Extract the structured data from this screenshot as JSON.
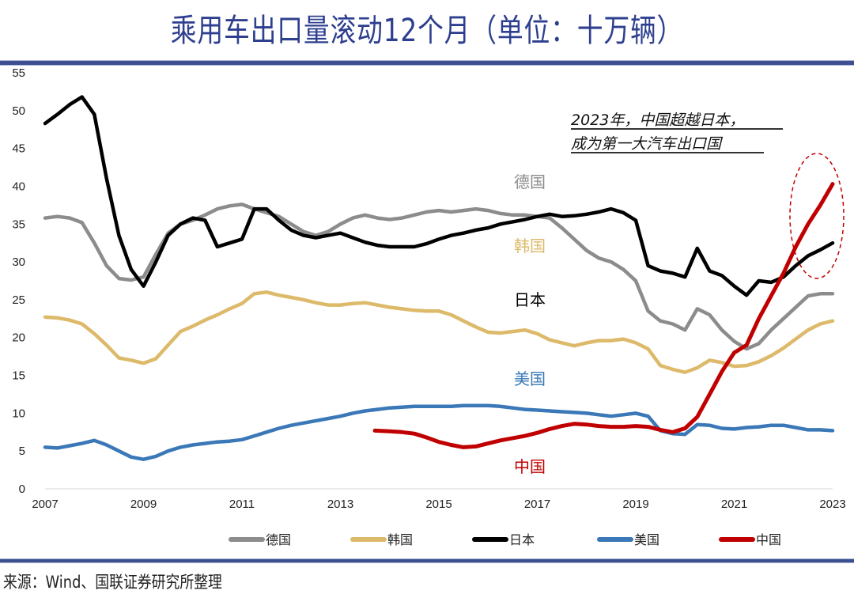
{
  "header": {
    "title": "乘用车出口量滚动12个月（单位：十万辆）"
  },
  "footer": {
    "source": "来源：Wind、国联证券研究所整理"
  },
  "chart_data": {
    "type": "line",
    "title": "乘用车出口量滚动12个月（单位：十万辆）",
    "xlabel": "",
    "ylabel": "",
    "xlim": [
      2007,
      2023
    ],
    "ylim": [
      0,
      55
    ],
    "yticks": [
      0,
      5,
      10,
      15,
      20,
      25,
      30,
      35,
      40,
      45,
      50,
      55
    ],
    "xticks": [
      2007,
      2009,
      2011,
      2013,
      2015,
      2017,
      2019,
      2021,
      2023
    ],
    "grid": false,
    "legend_position": "bottom",
    "annotation": {
      "line1": "2023年，中国超越日本，",
      "line2": "成为第一大汽车出口国",
      "highlight": "dashed ellipse around China & Japan 2022-2023"
    },
    "series": [
      {
        "name": "德国",
        "color": "#8c8c8c",
        "inline_label": "德国",
        "x": [
          2007.0,
          2007.25,
          2007.5,
          2007.75,
          2008.0,
          2008.25,
          2008.5,
          2008.75,
          2009.0,
          2009.25,
          2009.5,
          2009.75,
          2010.0,
          2010.25,
          2010.5,
          2010.75,
          2011.0,
          2011.25,
          2011.5,
          2011.75,
          2012.0,
          2012.25,
          2012.5,
          2012.75,
          2013.0,
          2013.25,
          2013.5,
          2013.75,
          2014.0,
          2014.25,
          2014.5,
          2014.75,
          2015.0,
          2015.25,
          2015.5,
          2015.75,
          2016.0,
          2016.25,
          2016.5,
          2016.75,
          2017.0,
          2017.25,
          2017.5,
          2017.75,
          2018.0,
          2018.25,
          2018.5,
          2018.75,
          2019.0,
          2019.25,
          2019.5,
          2019.75,
          2020.0,
          2020.25,
          2020.5,
          2020.75,
          2021.0,
          2021.25,
          2021.5,
          2021.75,
          2022.0,
          2022.25,
          2022.5,
          2022.75,
          2023.0
        ],
        "values": [
          35.8,
          36.0,
          35.8,
          35.2,
          32.5,
          29.5,
          27.8,
          27.6,
          28.0,
          31.0,
          33.8,
          35.0,
          35.5,
          36.2,
          37.0,
          37.4,
          37.6,
          37.0,
          36.5,
          36.0,
          35.0,
          34.0,
          33.5,
          34.0,
          35.0,
          35.8,
          36.2,
          35.8,
          35.6,
          35.8,
          36.2,
          36.6,
          36.8,
          36.6,
          36.8,
          37.0,
          36.8,
          36.4,
          36.2,
          36.2,
          36.0,
          35.8,
          34.5,
          33.0,
          31.5,
          30.5,
          30.0,
          29.0,
          27.5,
          23.5,
          22.2,
          21.8,
          21.0,
          23.8,
          23.0,
          21.0,
          19.5,
          18.5,
          19.2,
          21.0,
          22.5,
          24.0,
          25.5,
          25.8,
          25.8
        ]
      },
      {
        "name": "韩国",
        "color": "#ddb96a",
        "inline_label": "韩国",
        "x": [
          2007.0,
          2007.25,
          2007.5,
          2007.75,
          2008.0,
          2008.25,
          2008.5,
          2008.75,
          2009.0,
          2009.25,
          2009.5,
          2009.75,
          2010.0,
          2010.25,
          2010.5,
          2010.75,
          2011.0,
          2011.25,
          2011.5,
          2011.75,
          2012.0,
          2012.25,
          2012.5,
          2012.75,
          2013.0,
          2013.25,
          2013.5,
          2013.75,
          2014.0,
          2014.25,
          2014.5,
          2014.75,
          2015.0,
          2015.25,
          2015.5,
          2015.75,
          2016.0,
          2016.25,
          2016.5,
          2016.75,
          2017.0,
          2017.25,
          2017.5,
          2017.75,
          2018.0,
          2018.25,
          2018.5,
          2018.75,
          2019.0,
          2019.25,
          2019.5,
          2019.75,
          2020.0,
          2020.25,
          2020.5,
          2020.75,
          2021.0,
          2021.25,
          2021.5,
          2021.75,
          2022.0,
          2022.25,
          2022.5,
          2022.75,
          2023.0
        ],
        "values": [
          22.7,
          22.6,
          22.3,
          21.8,
          20.5,
          19.0,
          17.3,
          17.0,
          16.6,
          17.2,
          19.0,
          20.8,
          21.5,
          22.3,
          23.0,
          23.8,
          24.5,
          25.8,
          26.0,
          25.6,
          25.3,
          25.0,
          24.6,
          24.3,
          24.3,
          24.5,
          24.6,
          24.3,
          24.0,
          23.8,
          23.6,
          23.5,
          23.5,
          23.0,
          22.2,
          21.4,
          20.7,
          20.6,
          20.8,
          21.0,
          20.5,
          19.7,
          19.3,
          18.9,
          19.3,
          19.6,
          19.6,
          19.8,
          19.3,
          18.5,
          16.3,
          15.8,
          15.4,
          16.0,
          17.0,
          16.7,
          16.2,
          16.3,
          16.8,
          17.6,
          18.6,
          19.8,
          21.0,
          21.8,
          22.2
        ]
      },
      {
        "name": "日本",
        "color": "#000000",
        "inline_label": "日本",
        "x": [
          2007.0,
          2007.25,
          2007.5,
          2007.75,
          2008.0,
          2008.25,
          2008.5,
          2008.75,
          2009.0,
          2009.25,
          2009.5,
          2009.75,
          2010.0,
          2010.25,
          2010.5,
          2010.75,
          2011.0,
          2011.25,
          2011.5,
          2011.75,
          2012.0,
          2012.25,
          2012.5,
          2012.75,
          2013.0,
          2013.25,
          2013.5,
          2013.75,
          2014.0,
          2014.25,
          2014.5,
          2014.75,
          2015.0,
          2015.25,
          2015.5,
          2015.75,
          2016.0,
          2016.25,
          2016.5,
          2016.75,
          2017.0,
          2017.25,
          2017.5,
          2017.75,
          2018.0,
          2018.25,
          2018.5,
          2018.75,
          2019.0,
          2019.25,
          2019.5,
          2019.75,
          2020.0,
          2020.25,
          2020.5,
          2020.75,
          2021.0,
          2021.25,
          2021.5,
          2021.75,
          2022.0,
          2022.25,
          2022.5,
          2022.75,
          2023.0
        ],
        "values": [
          48.3,
          49.5,
          50.8,
          51.8,
          49.5,
          41.0,
          33.5,
          29.0,
          26.8,
          30.0,
          33.5,
          35.0,
          35.8,
          35.5,
          32.0,
          32.5,
          33.0,
          37.0,
          37.0,
          35.5,
          34.2,
          33.5,
          33.2,
          33.5,
          33.8,
          33.2,
          32.6,
          32.2,
          32.0,
          32.0,
          32.0,
          32.4,
          33.0,
          33.5,
          33.8,
          34.2,
          34.5,
          35.0,
          35.3,
          35.6,
          36.0,
          36.3,
          36.0,
          36.1,
          36.3,
          36.6,
          37.0,
          36.5,
          35.5,
          29.5,
          28.8,
          28.5,
          28.0,
          31.8,
          28.8,
          28.2,
          26.8,
          25.6,
          27.5,
          27.3,
          28.0,
          29.5,
          30.8,
          31.6,
          32.5
        ]
      },
      {
        "name": "美国",
        "color": "#3a78b7",
        "inline_label": "美国",
        "x": [
          2007.0,
          2007.25,
          2007.5,
          2007.75,
          2008.0,
          2008.25,
          2008.5,
          2008.75,
          2009.0,
          2009.25,
          2009.5,
          2009.75,
          2010.0,
          2010.25,
          2010.5,
          2010.75,
          2011.0,
          2011.25,
          2011.5,
          2011.75,
          2012.0,
          2012.25,
          2012.5,
          2012.75,
          2013.0,
          2013.25,
          2013.5,
          2013.75,
          2014.0,
          2014.25,
          2014.5,
          2014.75,
          2015.0,
          2015.25,
          2015.5,
          2015.75,
          2016.0,
          2016.25,
          2016.5,
          2016.75,
          2017.0,
          2017.25,
          2017.5,
          2017.75,
          2018.0,
          2018.25,
          2018.5,
          2018.75,
          2019.0,
          2019.25,
          2019.5,
          2019.75,
          2020.0,
          2020.25,
          2020.5,
          2020.75,
          2021.0,
          2021.25,
          2021.5,
          2021.75,
          2022.0,
          2022.25,
          2022.5,
          2022.75,
          2023.0
        ],
        "values": [
          5.5,
          5.4,
          5.7,
          6.0,
          6.4,
          5.8,
          5.0,
          4.2,
          3.9,
          4.3,
          5.0,
          5.5,
          5.8,
          6.0,
          6.2,
          6.3,
          6.5,
          7.0,
          7.5,
          8.0,
          8.4,
          8.7,
          9.0,
          9.3,
          9.6,
          10.0,
          10.3,
          10.5,
          10.7,
          10.8,
          10.9,
          10.9,
          10.9,
          10.9,
          11.0,
          11.0,
          11.0,
          10.9,
          10.7,
          10.5,
          10.4,
          10.3,
          10.2,
          10.1,
          10.0,
          9.8,
          9.6,
          9.8,
          10.0,
          9.6,
          7.7,
          7.3,
          7.2,
          8.5,
          8.4,
          8.0,
          7.9,
          8.1,
          8.2,
          8.4,
          8.4,
          8.1,
          7.8,
          7.8,
          7.7
        ]
      },
      {
        "name": "中国",
        "color": "#c00000",
        "inline_label": "中国",
        "x": [
          2013.7,
          2014.0,
          2014.25,
          2014.5,
          2014.75,
          2015.0,
          2015.25,
          2015.5,
          2015.75,
          2016.0,
          2016.25,
          2016.5,
          2016.75,
          2017.0,
          2017.25,
          2017.5,
          2017.75,
          2018.0,
          2018.25,
          2018.5,
          2018.75,
          2019.0,
          2019.25,
          2019.5,
          2019.75,
          2020.0,
          2020.25,
          2020.5,
          2020.75,
          2021.0,
          2021.25,
          2021.5,
          2021.75,
          2022.0,
          2022.25,
          2022.5,
          2022.75,
          2023.0
        ],
        "values": [
          7.7,
          7.6,
          7.5,
          7.3,
          6.8,
          6.2,
          5.8,
          5.5,
          5.6,
          6.0,
          6.4,
          6.7,
          7.0,
          7.4,
          7.9,
          8.3,
          8.6,
          8.5,
          8.3,
          8.2,
          8.2,
          8.3,
          8.2,
          7.8,
          7.5,
          8.0,
          9.5,
          12.5,
          15.5,
          18.0,
          19.0,
          22.5,
          25.5,
          28.5,
          32.0,
          35.0,
          37.5,
          40.3
        ]
      }
    ]
  }
}
